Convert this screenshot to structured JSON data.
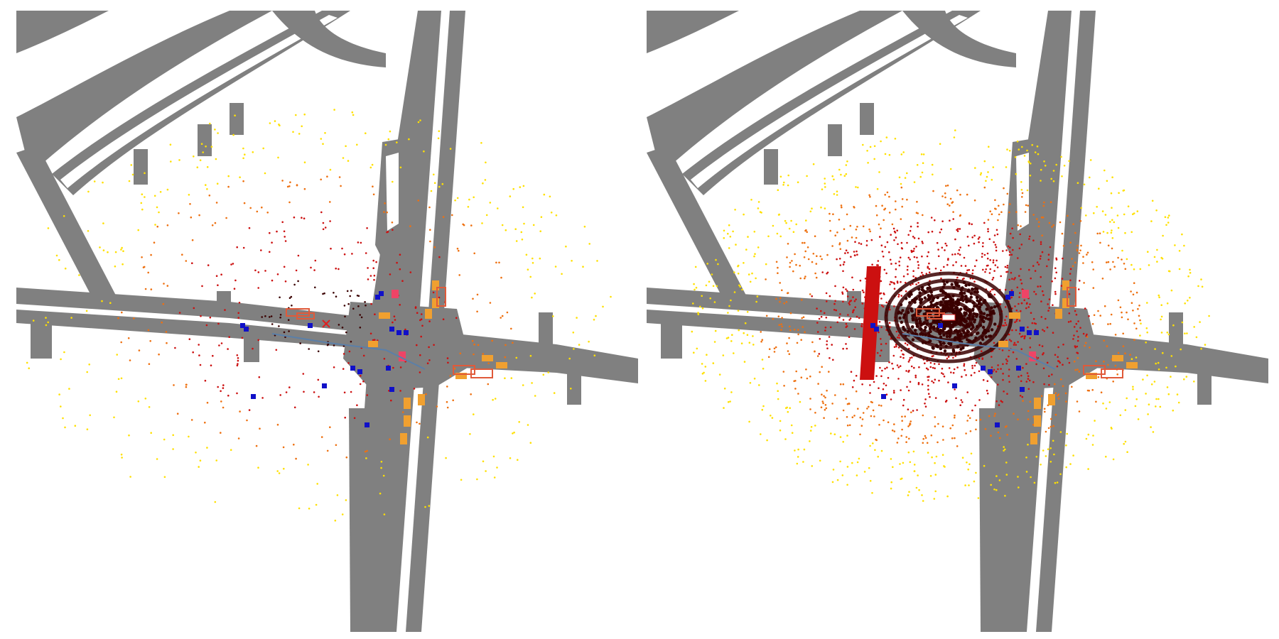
{
  "panels": [
    {
      "id": "sparse",
      "ego_marker": "x-marker"
    },
    {
      "id": "dense",
      "ego_marker": "ego-vehicle"
    }
  ],
  "colors": {
    "road": "#808080",
    "background": "#ffffff",
    "lane_line": "#ffffff",
    "pedestrian": "#1010c8",
    "vehicle_fill": "#f0a030",
    "vehicle_outline": "#e05a3a",
    "ego_trajectory": "#5b7fa8",
    "ego_marker": "#e02020",
    "lidar_near": "#3a0000",
    "lidar_mid": "#cc1010",
    "lidar_far": "#ffe000",
    "alert_box": "#ee4466"
  },
  "icons": [
    "x-marker-icon",
    "ego-vehicle-icon"
  ]
}
